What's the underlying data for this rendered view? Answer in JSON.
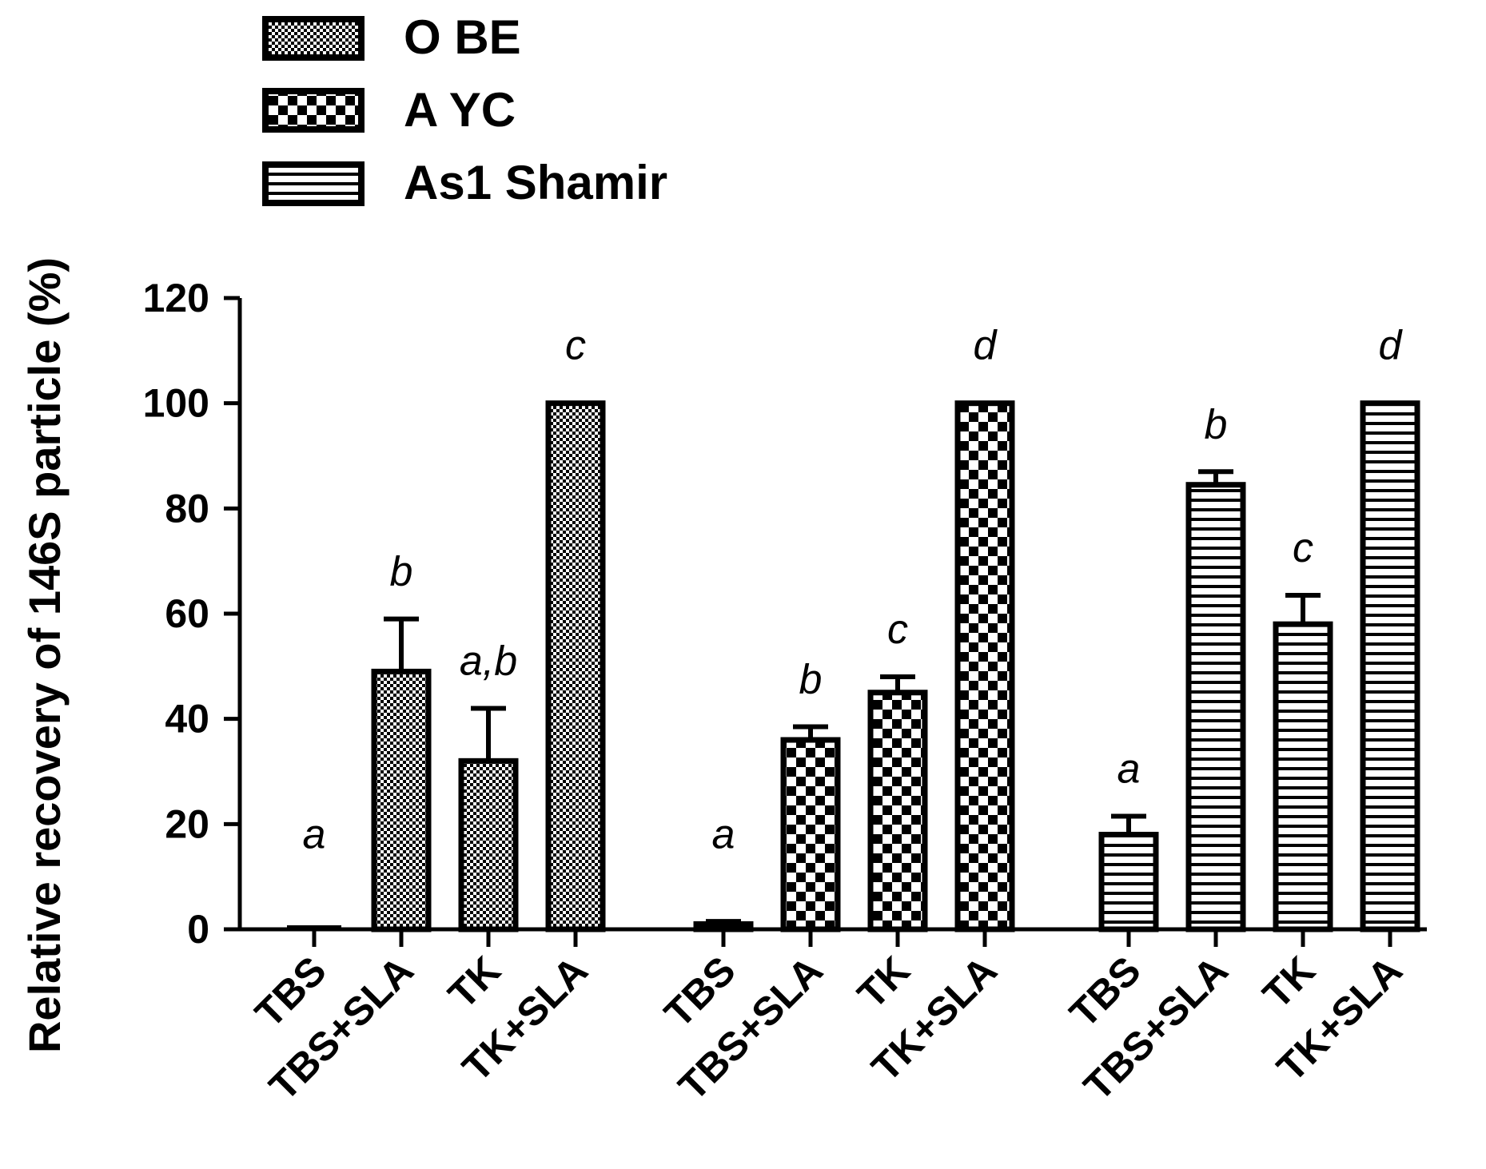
{
  "chart_data": {
    "type": "bar",
    "title": "",
    "ylabel": "Relative recovery of 146S particle (%)",
    "xlabel": "",
    "ylim": [
      0,
      120
    ],
    "yticks": [
      "0",
      "20",
      "40",
      "60",
      "80",
      "100",
      "120"
    ],
    "legend": {
      "placement": "top-left"
    },
    "colors": {
      "bar_stroke": "#000000",
      "pattern_dark": "#000000",
      "background": "#ffffff"
    },
    "series": [
      {
        "name": "O BE",
        "pattern": "fine-check",
        "categories": [
          "TBS",
          "TBS+SLA",
          "TK",
          "TK+SLA"
        ],
        "values": [
          0,
          49,
          32,
          100
        ],
        "errors": [
          0,
          10,
          10,
          0
        ],
        "significance": [
          "a",
          "b",
          "a,b",
          "c"
        ]
      },
      {
        "name": "A YC",
        "pattern": "checkerboard",
        "categories": [
          "TBS",
          "TBS+SLA",
          "TK",
          "TK+SLA"
        ],
        "values": [
          1,
          36,
          45,
          100
        ],
        "errors": [
          0.5,
          2.5,
          3,
          0
        ],
        "significance": [
          "a",
          "b",
          "c",
          "d"
        ]
      },
      {
        "name": "As1 Shamir",
        "pattern": "horizontal-stripes",
        "categories": [
          "TBS",
          "TBS+SLA",
          "TK",
          "TK+SLA"
        ],
        "values": [
          18,
          84.5,
          58,
          100
        ],
        "errors": [
          3.5,
          2.5,
          5.5,
          0
        ],
        "significance": [
          "a",
          "b",
          "c",
          "d"
        ]
      }
    ]
  }
}
